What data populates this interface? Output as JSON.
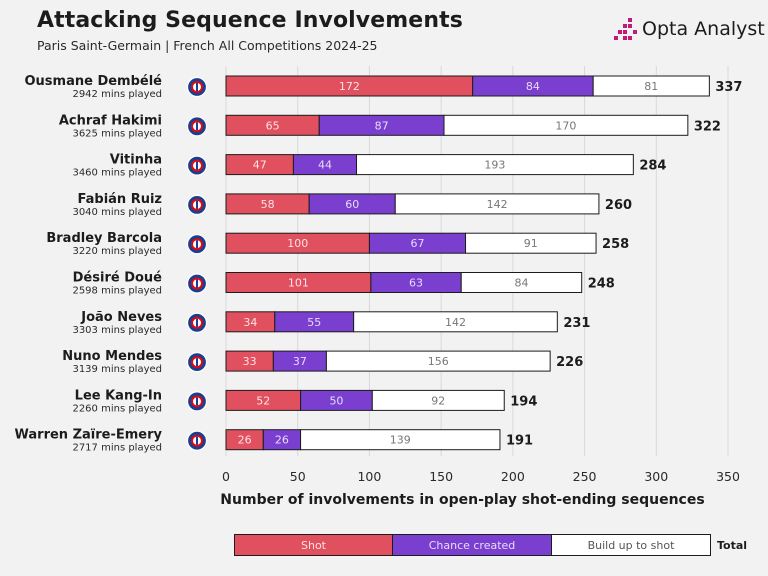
{
  "header": {
    "title": "Attacking Sequence Involvements",
    "subtitle": "Paris Saint-Germain | French All Competitions 2024-25",
    "brand": "Opta Analyst"
  },
  "colors": {
    "shot": "#e0505e",
    "chance": "#7b3fd0",
    "build": "#ffffff",
    "club_badge": "#1b3f8f"
  },
  "legend": {
    "shot": "Shot",
    "chance": "Chance created",
    "build": "Build up to shot",
    "total": "Total"
  },
  "chart_data": {
    "type": "bar",
    "orientation": "horizontal",
    "stacked": true,
    "xlabel": "Number of involvements in open-play shot-ending sequences",
    "xlim": [
      0,
      350
    ],
    "xticks": [
      0,
      50,
      100,
      150,
      200,
      250,
      300,
      350
    ],
    "grid": true,
    "categories": [
      "Ousmane Dembélé",
      "Achraf Hakimi",
      "Vitinha",
      "Fabián Ruiz",
      "Bradley Barcola",
      "Désiré Doué",
      "João Neves",
      "Nuno Mendes",
      "Lee Kang-In",
      "Warren Zaïre-Emery"
    ],
    "minutes": [
      "2942 mins played",
      "3625 mins played",
      "3460 mins played",
      "3040 mins played",
      "3220 mins played",
      "2598 mins played",
      "3303 mins played",
      "3139 mins played",
      "2260 mins played",
      "2717 mins played"
    ],
    "series": [
      {
        "name": "Shot",
        "values": [
          172,
          65,
          47,
          58,
          100,
          101,
          34,
          33,
          52,
          26
        ]
      },
      {
        "name": "Chance created",
        "values": [
          84,
          87,
          44,
          60,
          67,
          63,
          55,
          37,
          50,
          26
        ]
      },
      {
        "name": "Build up to shot",
        "values": [
          81,
          170,
          193,
          142,
          91,
          84,
          142,
          156,
          92,
          139
        ]
      }
    ],
    "totals": [
      337,
      322,
      284,
      260,
      258,
      248,
      231,
      226,
      194,
      191
    ]
  }
}
